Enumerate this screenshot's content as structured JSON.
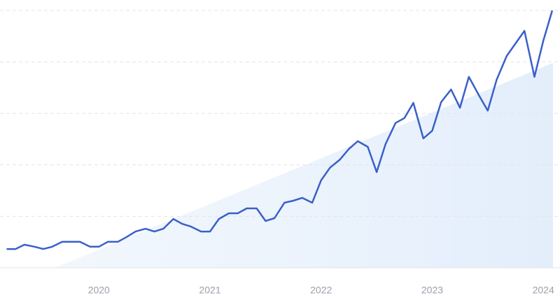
{
  "chart_data": {
    "type": "line",
    "x": [
      2019.17,
      2019.25,
      2019.33,
      2019.42,
      2019.5,
      2019.58,
      2019.67,
      2019.75,
      2019.83,
      2019.92,
      2020,
      2020.08,
      2020.17,
      2020.25,
      2020.33,
      2020.42,
      2020.5,
      2020.58,
      2020.67,
      2020.75,
      2020.83,
      2020.92,
      2021,
      2021.08,
      2021.17,
      2021.25,
      2021.33,
      2021.42,
      2021.5,
      2021.58,
      2021.67,
      2021.75,
      2021.83,
      2021.92,
      2022,
      2022.08,
      2022.17,
      2022.25,
      2022.33,
      2022.42,
      2022.5,
      2022.58,
      2022.67,
      2022.75,
      2022.83,
      2022.92,
      2023,
      2023.08,
      2023.17,
      2023.25,
      2023.33,
      2023.42,
      2023.5,
      2023.58,
      2023.67,
      2023.75,
      2023.83,
      2023.92,
      2024,
      2024.08
    ],
    "series": [
      {
        "color": "#3a60c8",
        "values": [
          7.3,
          7.3,
          9.0,
          8.2,
          7.3,
          8.2,
          10.1,
          10.1,
          10.1,
          8.2,
          8.2,
          10.1,
          10.1,
          12.0,
          14.1,
          15.2,
          14.1,
          15.2,
          19.0,
          17.1,
          16.0,
          14.1,
          14.1,
          19.0,
          21.2,
          21.2,
          23.1,
          23.1,
          18.2,
          19.3,
          25.3,
          26.1,
          27.2,
          25.3,
          34.0,
          38.9,
          42.1,
          46.2,
          49.2,
          47.0,
          37.2,
          48.1,
          56.3,
          58.2,
          64.1,
          50.3,
          53.3,
          64.4,
          69.3,
          62.2,
          74.2,
          67.1,
          61.1,
          73.1,
          82.3,
          87.2,
          92.1,
          74.2,
          88.3,
          100
        ]
      }
    ],
    "xlim": [
      2019.11,
      2024.15
    ],
    "xticks": [
      2020,
      2021,
      2022,
      2023,
      2024
    ],
    "ylim": [
      0,
      100
    ],
    "yticks": [
      0,
      20,
      40,
      60,
      80,
      100
    ],
    "grid": true
  }
}
